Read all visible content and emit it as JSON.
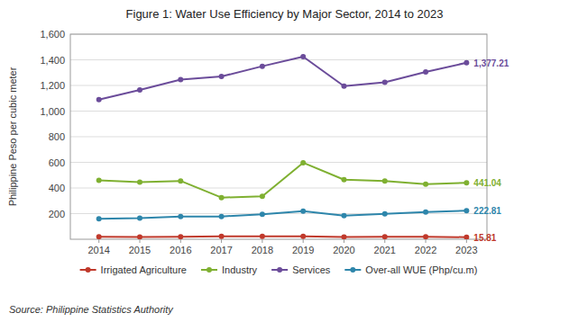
{
  "chart_data": {
    "type": "line",
    "title": "Figure 1: Water Use Efficiency by Major Sector, 2014 to 2023",
    "source": "Source: Philippine Statistics Authority",
    "ylabel": "Philippine Peso  per cubic meter",
    "x": [
      2014,
      2015,
      2016,
      2017,
      2018,
      2019,
      2020,
      2021,
      2022,
      2023
    ],
    "xlim": [
      2013.3,
      2023.5
    ],
    "xticks": [
      2014,
      2015,
      2016,
      2017,
      2018,
      2019,
      2020,
      2021,
      2022,
      2023
    ],
    "ylim": [
      0,
      1600
    ],
    "yticks": [
      200,
      400,
      600,
      800,
      {
        "value": 1000,
        "label": "1,000"
      },
      {
        "value": 1200,
        "label": "1,200"
      },
      {
        "value": 1400,
        "label": "1,400"
      },
      {
        "value": 1600,
        "label": "1,600"
      }
    ],
    "grid": true,
    "legend": "bottom",
    "data_labels": true,
    "series": [
      {
        "name": "Irrigated Agriculture",
        "color": "#c0392b",
        "marker": "circle",
        "values": [
          20,
          18,
          20,
          22,
          22,
          22,
          18,
          20,
          20,
          15.81
        ],
        "value_labels": [
          null,
          null,
          null,
          null,
          null,
          null,
          null,
          null,
          null,
          "15.81"
        ]
      },
      {
        "name": "Industry",
        "color": "#7fb031",
        "marker": "circle",
        "values": [
          460,
          445,
          455,
          325,
          335,
          597,
          465,
          455,
          430,
          441.04
        ],
        "value_labels": [
          null,
          null,
          null,
          null,
          null,
          null,
          null,
          null,
          null,
          "441.04"
        ]
      },
      {
        "name": "Services",
        "color": "#6b4c9a",
        "marker": "circle",
        "values": [
          1090,
          1165,
          1245,
          1270,
          1350,
          1425,
          1195,
          1225,
          1305,
          1377.21
        ],
        "value_labels": [
          null,
          null,
          null,
          null,
          null,
          null,
          null,
          null,
          null,
          "1,377.21"
        ]
      },
      {
        "name": "Over-all WUE (Php/cu.m)",
        "color": "#2e86ab",
        "marker": "circle",
        "values": [
          160,
          165,
          178,
          178,
          195,
          220,
          185,
          198,
          213,
          222.81
        ],
        "value_labels": [
          null,
          null,
          null,
          null,
          null,
          null,
          null,
          null,
          null,
          "222.81"
        ]
      }
    ]
  }
}
